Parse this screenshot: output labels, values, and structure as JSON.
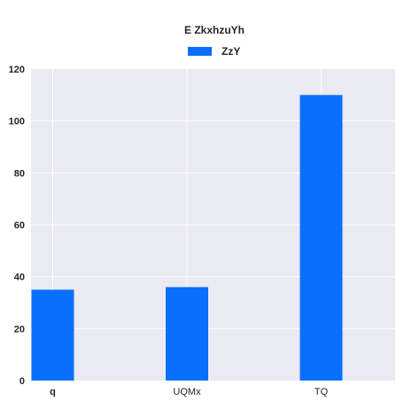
{
  "chart_data": {
    "type": "bar",
    "title": "E ZkxhzuYh",
    "categories": [
      "q",
      "UQMx",
      "TQ"
    ],
    "categories_bold": [
      true,
      false,
      false
    ],
    "series": [
      {
        "name": "ZzY",
        "values": [
          35,
          36,
          110
        ],
        "color": "#0a6ffc"
      }
    ],
    "xlabel": "",
    "ylabel": "",
    "ylim": [
      0,
      120
    ],
    "yticks": [
      0,
      20,
      40,
      60,
      80,
      100,
      120
    ],
    "grid": true,
    "legend_position": "top-center",
    "background_color": "#eaeaf2"
  }
}
